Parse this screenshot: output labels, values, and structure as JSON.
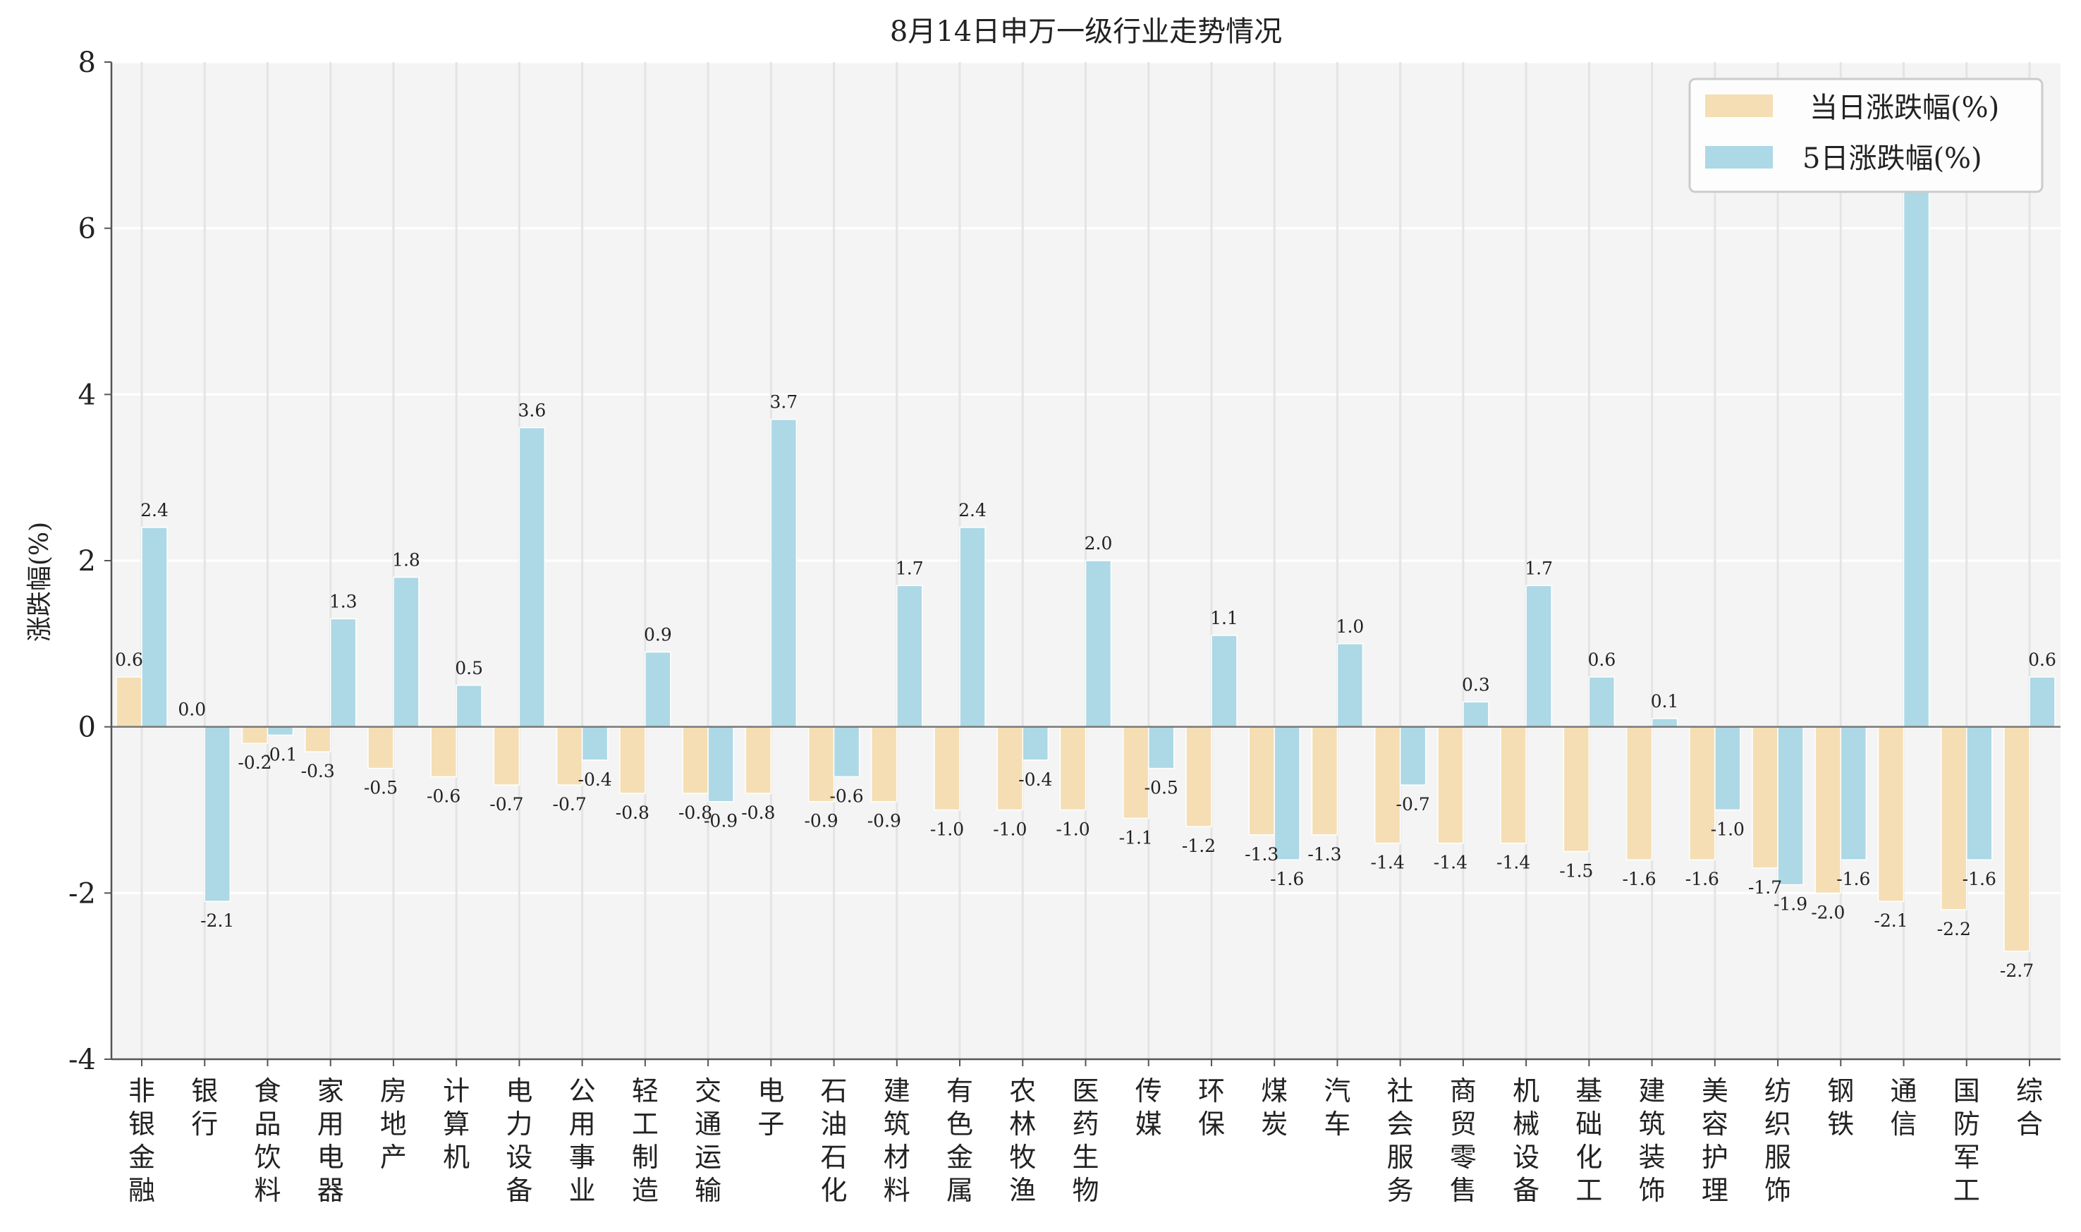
{
  "chart_data": {
    "type": "bar",
    "title": "8月14日申万一级行业走势情况",
    "xlabel": "",
    "ylabel": "涨跌幅(%)",
    "ylim": [
      -4,
      8
    ],
    "yticks": [
      -4,
      -2,
      0,
      2,
      4,
      6,
      8
    ],
    "grid": true,
    "legend_position": "top-right",
    "categories": [
      "非银金融",
      "银行",
      "食品饮料",
      "家用电器",
      "房地产",
      "计算机",
      "电力设备",
      "公用事业",
      "轻工制造",
      "交通运输",
      "电子",
      "石油石化",
      "建筑材料",
      "有色金属",
      "农林牧渔",
      "医药生物",
      "传媒",
      "环保",
      "煤炭",
      "汽车",
      "社会服务",
      "商贸零售",
      "机械设备",
      "基础化工",
      "建筑装饰",
      "美容护理",
      "纺织服饰",
      "钢铁",
      "通信",
      "国防军工",
      "综合"
    ],
    "series": [
      {
        "name": "当日涨跌幅(%)",
        "color": "#F5DEB3",
        "values": [
          0.6,
          0.0,
          -0.2,
          -0.3,
          -0.5,
          -0.6,
          -0.7,
          -0.7,
          -0.8,
          -0.8,
          -0.8,
          -0.9,
          -0.9,
          -1.0,
          -1.0,
          -1.0,
          -1.1,
          -1.2,
          -1.3,
          -1.3,
          -1.4,
          -1.4,
          -1.4,
          -1.5,
          -1.6,
          -1.6,
          -1.7,
          -2.0,
          -2.1,
          -2.2,
          -2.7
        ]
      },
      {
        "name": "5日涨跌幅(%)",
        "color": "#ADD8E6",
        "values": [
          2.4,
          -2.1,
          -0.1,
          1.3,
          1.8,
          0.5,
          3.6,
          -0.4,
          0.9,
          -0.9,
          3.7,
          -0.6,
          1.7,
          2.4,
          -0.4,
          2.0,
          -0.5,
          1.1,
          -1.6,
          1.0,
          -0.7,
          0.3,
          1.7,
          0.6,
          0.1,
          -1.0,
          -1.9,
          -1.6,
          6.9,
          -1.6,
          0.6
        ]
      }
    ]
  }
}
